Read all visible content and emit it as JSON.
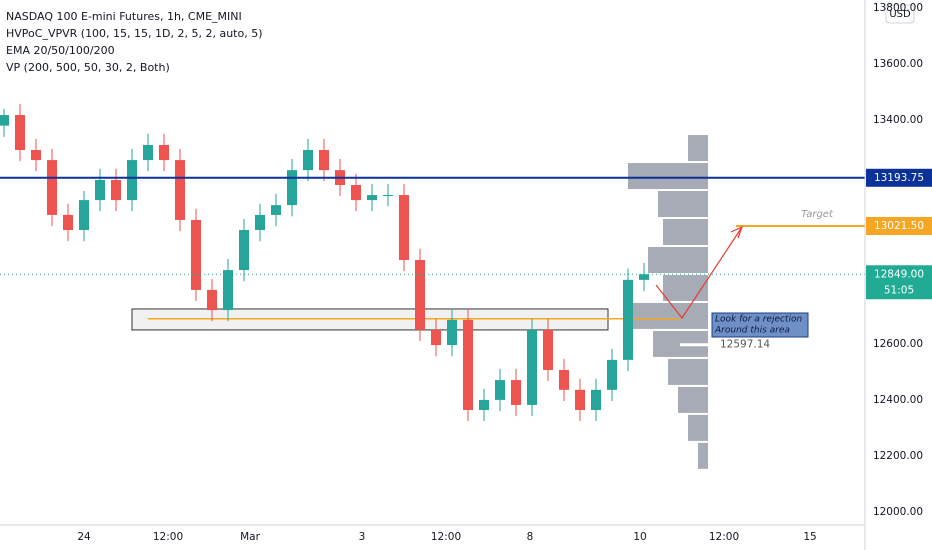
{
  "chart_data": {
    "type": "candlestick",
    "title": "NASDAQ 100 E-mini Futures, 1h, CME_MINI",
    "indicators": [
      "HVPoC_VPVR (100, 15, 15, 1D, 2, 5, 2, auto, 5)",
      "EMA 20/50/100/200",
      "VP (200, 500, 50, 30, 2, Both)"
    ],
    "currency": "USD",
    "x": [
      1,
      5,
      9,
      13,
      17,
      21,
      25,
      29,
      33,
      37,
      41,
      45,
      49,
      53,
      57,
      61,
      65,
      69,
      73,
      77,
      81,
      85,
      89,
      93,
      97,
      101,
      105,
      109,
      113,
      117,
      121,
      125,
      129,
      133,
      137,
      141,
      145,
      149,
      153,
      157,
      161
    ],
    "open": [
      13380,
      13418,
      13293,
      13257,
      13061,
      13007,
      13114,
      13186,
      13114,
      13257,
      13311,
      13257,
      13043,
      12793,
      12721,
      12864,
      13007,
      13061,
      13096,
      13221,
      13293,
      13221,
      13168,
      13114,
      13132,
      13132,
      12900,
      12650,
      12596,
      12686,
      12364,
      12400,
      12471,
      12382,
      12650,
      12507,
      12436,
      12364,
      12436,
      12543,
      12829
    ],
    "high": [
      13440,
      13458,
      13333,
      13297,
      13101,
      13147,
      13226,
      13226,
      13297,
      13351,
      13351,
      13297,
      13083,
      12833,
      12904,
      13047,
      13101,
      13136,
      13261,
      13333,
      13333,
      13261,
      13208,
      13172,
      13172,
      13172,
      12940,
      12690,
      12726,
      12726,
      12440,
      12511,
      12511,
      12690,
      12690,
      12547,
      12476,
      12476,
      12583,
      12869,
      12889
    ],
    "low": [
      13340,
      13253,
      13217,
      13021,
      12967,
      12967,
      13074,
      13074,
      13074,
      13217,
      13217,
      13003,
      12753,
      12681,
      12681,
      12824,
      12967,
      13021,
      13056,
      13181,
      13181,
      13128,
      13074,
      13074,
      13092,
      12860,
      12610,
      12556,
      12556,
      12324,
      12324,
      12360,
      12342,
      12342,
      12467,
      12396,
      12324,
      12324,
      12396,
      12503,
      12789
    ],
    "close": [
      13418,
      13293,
      13257,
      13061,
      13007,
      13114,
      13186,
      13114,
      13257,
      13311,
      13257,
      13043,
      12793,
      12721,
      12864,
      13007,
      13061,
      13096,
      13221,
      13293,
      13221,
      13168,
      13114,
      13132,
      13132,
      12900,
      12650,
      12596,
      12686,
      12364,
      12400,
      12471,
      12382,
      12650,
      12507,
      12436,
      12364,
      12436,
      12543,
      12829,
      12849
    ],
    "up_color": "#26a69a",
    "down_color": "#ef5350",
    "xlim": [
      0,
      216
    ],
    "xticks": [
      {
        "value": 21,
        "label": "24"
      },
      {
        "value": 42,
        "label": "12:00"
      },
      {
        "value": 62.5,
        "label": "Mar"
      },
      {
        "value": 90.5,
        "label": "3"
      },
      {
        "value": 111.5,
        "label": "12:00"
      },
      {
        "value": 132.5,
        "label": "8"
      },
      {
        "value": 160,
        "label": "10"
      },
      {
        "value": 181,
        "label": "12:00"
      },
      {
        "value": 202.5,
        "label": "15"
      }
    ],
    "ylim": [
      11953,
      13829
    ],
    "yticks": [
      {
        "value": 12000,
        "label": "12000.00"
      },
      {
        "value": 12200,
        "label": "12200.00"
      },
      {
        "value": 12400,
        "label": "12400.00"
      },
      {
        "value": 12600,
        "label": "12600.00"
      },
      {
        "value": 12800,
        "label": "12800.00"
      },
      {
        "value": 13000,
        "label": "13000.00"
      },
      {
        "value": 13200,
        "label": "13200.00"
      },
      {
        "value": 13400,
        "label": "13400.00"
      },
      {
        "value": 13600,
        "label": "13600.00"
      },
      {
        "value": 13800,
        "label": "13800.00"
      }
    ],
    "volume_profile": {
      "levels": [
        13300,
        13200,
        13100,
        13000,
        12900,
        12800,
        12700,
        12600,
        12500,
        12400,
        12300,
        12200
      ],
      "volumes": [
        20,
        80,
        50,
        45,
        60,
        45,
        75,
        55,
        40,
        30,
        20,
        10
      ],
      "color": "#8a8f9c",
      "xlim": [
        0,
        100
      ]
    },
    "levels": [
      {
        "value": 13193.75,
        "label": "13193.75",
        "color": "#0c3299",
        "from": 0
      },
      {
        "value": 13021.5,
        "label": "13021.50",
        "color": "#f5a623",
        "from": 184,
        "note": "Target"
      },
      {
        "value": 12849,
        "label": "12849.00",
        "color": "#22ab94",
        "from": 0,
        "countdown": "51:05"
      }
    ],
    "zone": {
      "top": 12725,
      "bottom": 12650,
      "from": 33,
      "to": 152
    },
    "zone_line": {
      "value": 12690,
      "from": 37,
      "to": 170
    },
    "poc": {
      "value": 12597.14,
      "label": "12597.14"
    },
    "annotation": [
      "Look for a rejection",
      "Around this area"
    ]
  }
}
